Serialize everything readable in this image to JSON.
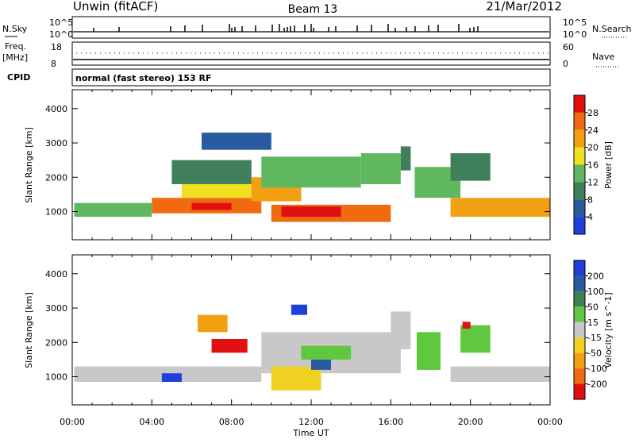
{
  "header": {
    "station": "Unwin (fitACF)",
    "beam": "Beam 13",
    "date": "21/Mar/2012"
  },
  "noise_panel": {
    "left_label": "N.Sky",
    "right_label": "N.Search",
    "ticks_left": [
      "10^5",
      "10^0"
    ],
    "ticks_right": [
      "10^5",
      "10^0"
    ]
  },
  "freq_panel": {
    "left_label_1": "Freq.",
    "left_label_2": "[MHz]",
    "right_label": "Nave",
    "ticks_left": [
      "18",
      "8"
    ],
    "ticks_right": [
      "60",
      "0"
    ]
  },
  "cpid": {
    "label": "CPID",
    "text": "normal (fast stereo) 153 RF"
  },
  "x_axis": {
    "label": "Time UT",
    "ticks": [
      "00:00",
      "04:00",
      "08:00",
      "12:00",
      "16:00",
      "20:00",
      "00:00"
    ]
  },
  "colors": {
    "power": [
      "#1f3fdc",
      "#2a5aa0",
      "#3f7f5a",
      "#5fb85f",
      "#f0e020",
      "#f0a010",
      "#f06a10",
      "#e01010"
    ],
    "velocity": [
      "#e01010",
      "#f06a10",
      "#f0a010",
      "#f0d020",
      "#c8c8c8",
      "#5fc83f",
      "#3f7f5a",
      "#2a5aa0",
      "#1f3fdc"
    ],
    "ground_scatter": "#c8c8c8"
  },
  "chart_data": [
    {
      "type": "heatmap",
      "title": "",
      "ylabel": "Slant Range [km]",
      "xlabel": "",
      "x_ticks": [
        "00:00",
        "04:00",
        "08:00",
        "12:00",
        "16:00",
        "20:00",
        "00:00"
      ],
      "y_ticks": [
        "1000",
        "2000",
        "3000",
        "4000"
      ],
      "xlim_hours": [
        0,
        24
      ],
      "ylim_km": [
        180,
        4550
      ],
      "colorbar": {
        "label": "Power [dB]",
        "ticks": [
          "28",
          "24",
          "20",
          "16",
          "12",
          "8",
          "4"
        ],
        "range": [
          0,
          30
        ]
      },
      "regions": [
        {
          "t0": 0.1,
          "t1": 4.0,
          "r0": 850,
          "r1": 1250,
          "value": 14
        },
        {
          "t0": 4.0,
          "t1": 9.5,
          "r0": 950,
          "r1": 1400,
          "value": 24
        },
        {
          "t0": 6.0,
          "t1": 8.0,
          "r0": 1050,
          "r1": 1250,
          "value": 28
        },
        {
          "t0": 5.5,
          "t1": 9.0,
          "r0": 1400,
          "r1": 1800,
          "value": 16
        },
        {
          "t0": 5.0,
          "t1": 9.0,
          "r0": 1800,
          "r1": 2500,
          "value": 10
        },
        {
          "t0": 6.5,
          "t1": 10.0,
          "r0": 2800,
          "r1": 3300,
          "value": 6
        },
        {
          "t0": 9.0,
          "t1": 11.5,
          "r0": 1300,
          "r1": 2000,
          "value": 20
        },
        {
          "t0": 9.5,
          "t1": 14.5,
          "r0": 1700,
          "r1": 2600,
          "value": 14
        },
        {
          "t0": 10.0,
          "t1": 16.0,
          "r0": 700,
          "r1": 1200,
          "value": 24
        },
        {
          "t0": 10.5,
          "t1": 13.5,
          "r0": 850,
          "r1": 1150,
          "value": 28
        },
        {
          "t0": 14.5,
          "t1": 16.5,
          "r0": 1800,
          "r1": 2700,
          "value": 14
        },
        {
          "t0": 16.5,
          "t1": 17.0,
          "r0": 2200,
          "r1": 2900,
          "value": 10
        },
        {
          "t0": 17.2,
          "t1": 19.5,
          "r0": 1400,
          "r1": 2300,
          "value": 12
        },
        {
          "t0": 19.0,
          "t1": 24.0,
          "r0": 850,
          "r1": 1400,
          "value": 22
        },
        {
          "t0": 19.0,
          "t1": 21.0,
          "r0": 1900,
          "r1": 2700,
          "value": 10
        }
      ]
    },
    {
      "type": "heatmap",
      "title": "",
      "ylabel": "Slant Range [km]",
      "xlabel": "Time UT",
      "x_ticks": [
        "00:00",
        "04:00",
        "08:00",
        "12:00",
        "16:00",
        "20:00",
        "00:00"
      ],
      "y_ticks": [
        "1000",
        "2000",
        "3000",
        "4000"
      ],
      "xlim_hours": [
        0,
        24
      ],
      "ylim_km": [
        180,
        4550
      ],
      "colorbar": {
        "label": "Velocity [m s^-1]",
        "ticks": [
          "200",
          "100",
          "50",
          "15",
          "-15",
          "-50",
          "-100",
          "-200"
        ],
        "range": [
          -250,
          250
        ]
      },
      "regions": [
        {
          "t0": 0.1,
          "t1": 9.5,
          "r0": 850,
          "r1": 1300,
          "value": 0
        },
        {
          "t0": 9.5,
          "t1": 16.5,
          "r0": 1100,
          "r1": 2300,
          "value": 0
        },
        {
          "t0": 16.0,
          "t1": 17.0,
          "r0": 1800,
          "r1": 2900,
          "value": 0
        },
        {
          "t0": 19.0,
          "t1": 24.0,
          "r0": 850,
          "r1": 1300,
          "value": 0
        },
        {
          "t0": 6.3,
          "t1": 7.8,
          "r0": 2300,
          "r1": 2800,
          "value": -60
        },
        {
          "t0": 7.0,
          "t1": 8.8,
          "r0": 1700,
          "r1": 2100,
          "value": -210
        },
        {
          "t0": 10.0,
          "t1": 12.5,
          "r0": 600,
          "r1": 1300,
          "value": -40
        },
        {
          "t0": 12.0,
          "t1": 13.0,
          "r0": 1200,
          "r1": 1500,
          "value": 180
        },
        {
          "t0": 11.5,
          "t1": 14.0,
          "r0": 1500,
          "r1": 1900,
          "value": 40
        },
        {
          "t0": 11.0,
          "t1": 11.8,
          "r0": 2800,
          "r1": 3100,
          "value": 200
        },
        {
          "t0": 17.3,
          "t1": 18.5,
          "r0": 1200,
          "r1": 2300,
          "value": 40
        },
        {
          "t0": 19.5,
          "t1": 21.0,
          "r0": 1700,
          "r1": 2500,
          "value": 35
        },
        {
          "t0": 4.5,
          "t1": 5.5,
          "r0": 850,
          "r1": 1100,
          "value": 210
        },
        {
          "t0": 19.6,
          "t1": 20.0,
          "r0": 2400,
          "r1": 2600,
          "value": -220
        }
      ]
    }
  ]
}
